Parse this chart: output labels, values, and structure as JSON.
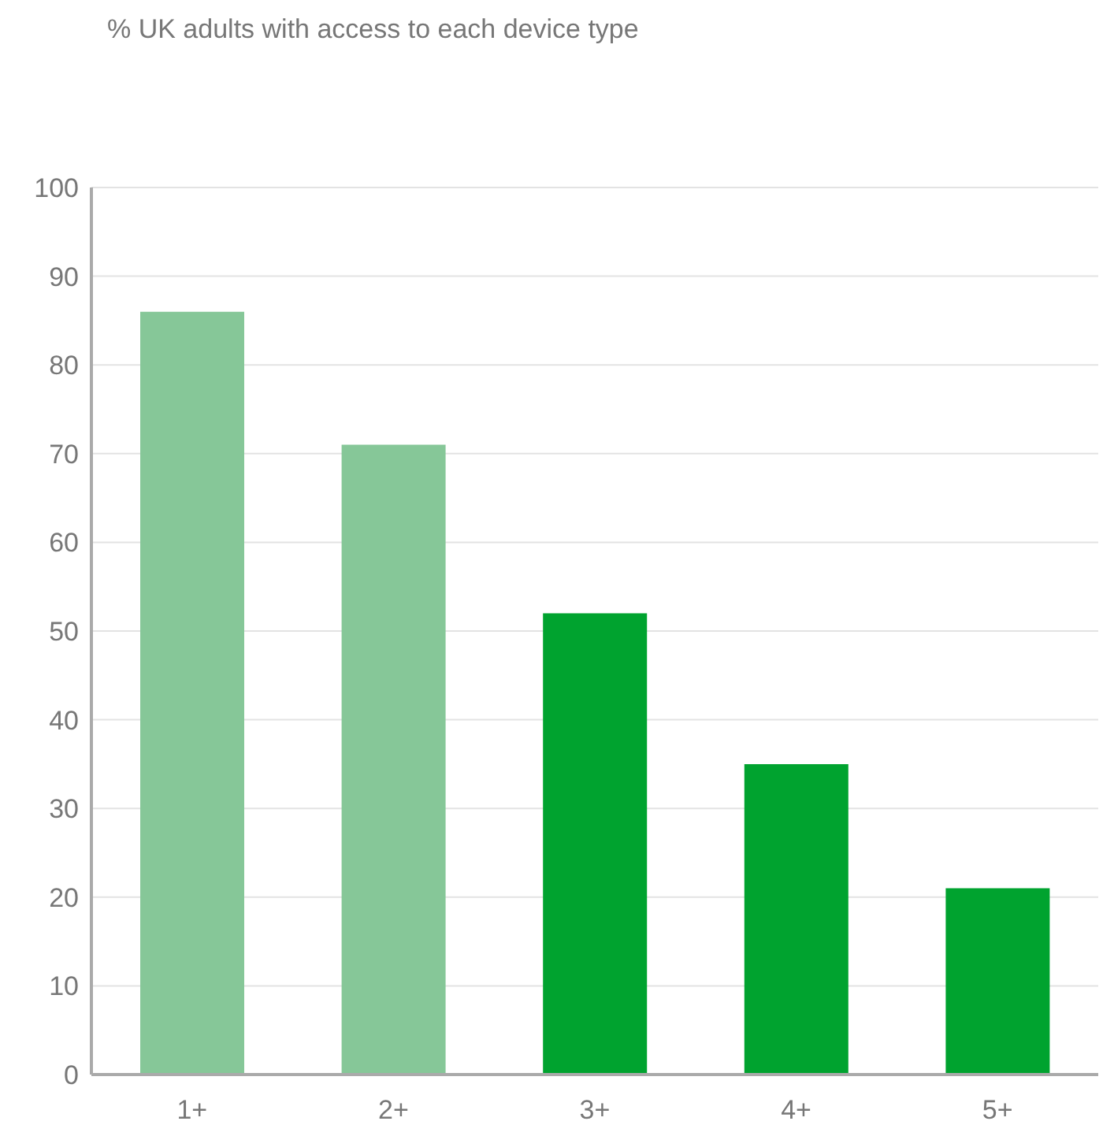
{
  "chart_data": {
    "type": "bar",
    "title": "% UK adults with access to each device type",
    "categories": [
      "1+",
      "2+",
      "3+",
      "4+",
      "5+"
    ],
    "values": [
      86,
      71,
      52,
      35,
      21
    ],
    "colors": [
      "#86c798",
      "#86c798",
      "#00a32f",
      "#00a32f",
      "#00a32f"
    ],
    "ylim": [
      0,
      100
    ],
    "yticks": [
      0,
      10,
      20,
      30,
      40,
      50,
      60,
      70,
      80,
      90,
      100
    ],
    "grid": "y"
  }
}
